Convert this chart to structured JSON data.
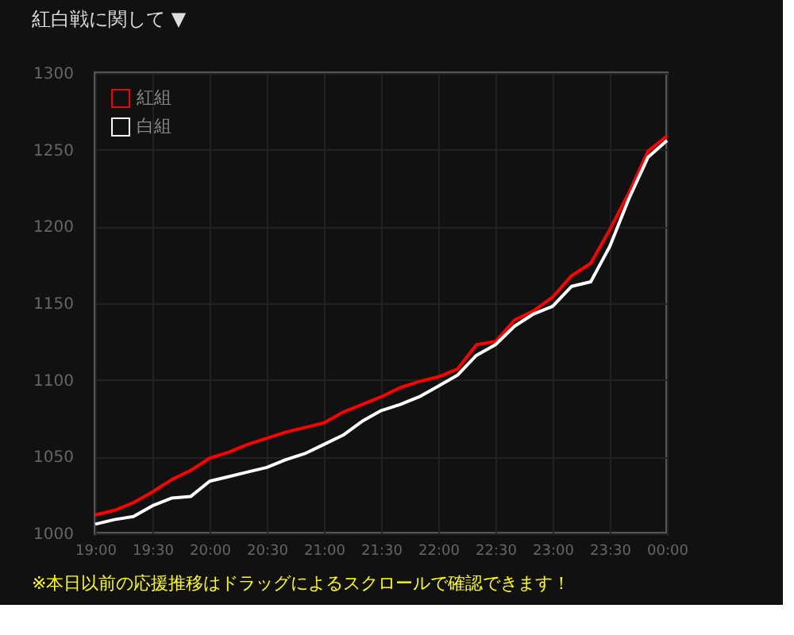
{
  "chart_data": {
    "type": "line",
    "title": "紅白戦に関して ▼",
    "x": [
      19,
      19.1667,
      19.3333,
      19.5,
      19.6667,
      19.8333,
      20,
      20.1667,
      20.3333,
      20.5,
      20.6667,
      20.8333,
      21,
      21.1667,
      21.3333,
      21.5,
      21.6667,
      21.8333,
      22,
      22.1667,
      22.3333,
      22.5,
      22.6667,
      22.8333,
      23,
      23.1667,
      23.3333,
      23.5,
      23.6667,
      23.8333,
      24
    ],
    "series": [
      {
        "name": "紅組",
        "color": "#ff0000",
        "values": [
          1012,
          1015,
          1020,
          1027,
          1035,
          1041,
          1049,
          1053,
          1058,
          1062,
          1066,
          1069,
          1072,
          1079,
          1084,
          1089,
          1095,
          1099,
          1102,
          1107,
          1123,
          1125,
          1139,
          1145,
          1154,
          1168,
          1176,
          1198,
          1222,
          1249,
          1259
        ]
      },
      {
        "name": "白組",
        "color": "#ffffff",
        "values": [
          1006,
          1009,
          1011,
          1018,
          1023,
          1024,
          1034,
          1037,
          1040,
          1043,
          1048,
          1052,
          1058,
          1064,
          1073,
          1080,
          1084,
          1089,
          1096,
          1103,
          1116,
          1123,
          1135,
          1143,
          1148,
          1161,
          1164,
          1187,
          1218,
          1245,
          1256
        ]
      }
    ],
    "xlim": [
      19,
      24
    ],
    "xticks": [
      {
        "value": 19,
        "label": "19:00"
      },
      {
        "value": 19.5,
        "label": "19:30"
      },
      {
        "value": 20,
        "label": "20:00"
      },
      {
        "value": 20.5,
        "label": "20:30"
      },
      {
        "value": 21,
        "label": "21:00"
      },
      {
        "value": 21.5,
        "label": "21:30"
      },
      {
        "value": 22,
        "label": "22:00"
      },
      {
        "value": 22.5,
        "label": "22:30"
      },
      {
        "value": 23,
        "label": "23:00"
      },
      {
        "value": 23.5,
        "label": "23:30"
      },
      {
        "value": 24,
        "label": "00:00"
      }
    ],
    "ylim": [
      1000,
      1300
    ],
    "yticks": [
      1000,
      1050,
      1100,
      1150,
      1200,
      1250,
      1300
    ],
    "grid": true,
    "legend": "top left",
    "marker": "none",
    "line_style": "solid",
    "annotations": [
      "※本日以前の応援推移はドラッグによるスクロールで確認できます！"
    ]
  }
}
